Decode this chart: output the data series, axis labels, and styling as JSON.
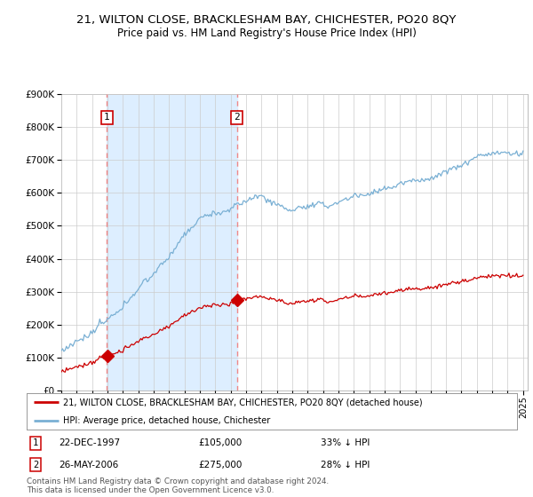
{
  "title": "21, WILTON CLOSE, BRACKLESHAM BAY, CHICHESTER, PO20 8QY",
  "subtitle": "Price paid vs. HM Land Registry's House Price Index (HPI)",
  "sale1_date": "22-DEC-1997",
  "sale1_price": 105000,
  "sale1_label": "33% ↓ HPI",
  "sale2_date": "26-MAY-2006",
  "sale2_price": 275000,
  "sale2_label": "28% ↓ HPI",
  "sale1_x": 1997.97,
  "sale2_x": 2006.4,
  "legend_line1": "21, WILTON CLOSE, BRACKLESHAM BAY, CHICHESTER, PO20 8QY (detached house)",
  "legend_line2": "HPI: Average price, detached house, Chichester",
  "footer": "Contains HM Land Registry data © Crown copyright and database right 2024.\nThis data is licensed under the Open Government Licence v3.0.",
  "hpi_color": "#7ab0d4",
  "price_color": "#cc0000",
  "dashed_color": "#ee8888",
  "shade_color": "#ddeeff",
  "ylim_max": 900000,
  "background_color": "#ffffff",
  "title_fontsize": 9.5,
  "subtitle_fontsize": 8.5
}
